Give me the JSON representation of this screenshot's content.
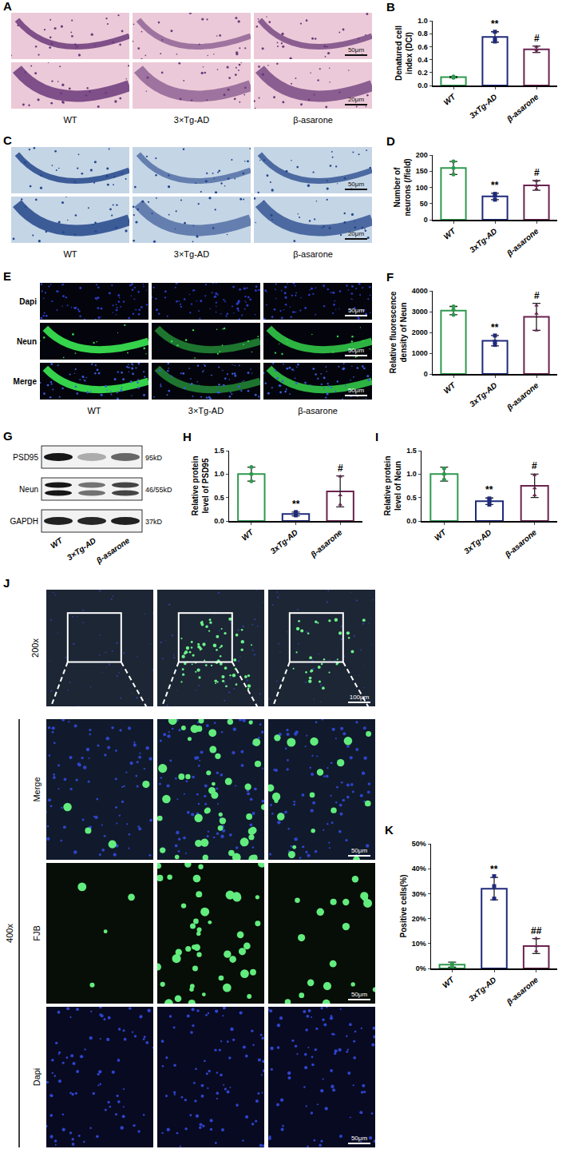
{
  "panels": {
    "A": {
      "label": "A",
      "groups": [
        "WT",
        "3×Tg-AD",
        "β-asarone"
      ],
      "scale_bars": [
        "50μm",
        "20μm"
      ]
    },
    "C": {
      "label": "C",
      "groups": [
        "WT",
        "3×Tg-AD",
        "β-asarone"
      ],
      "scale_bars": [
        "50μm",
        "20μm"
      ]
    },
    "E": {
      "label": "E",
      "groups": [
        "WT",
        "3×Tg-AD",
        "β-asarone"
      ],
      "rows": [
        "Dapi",
        "Neun",
        "Merge"
      ],
      "scale_bar": "50μm"
    },
    "G": {
      "label": "G",
      "groups": [
        "WT",
        "3×Tg-AD",
        "β-asarone"
      ],
      "blots": [
        {
          "protein": "PSD95",
          "size": "95kD"
        },
        {
          "protein": "Neun",
          "size": "46/55kD"
        },
        {
          "protein": "GAPDH",
          "size": "37kD"
        }
      ]
    },
    "J": {
      "label": "J",
      "magnifications": [
        "200x",
        "400x"
      ],
      "rows": [
        "Merge",
        "FJB",
        "Dapi"
      ],
      "scale_bars": [
        "100μm",
        "50μm"
      ]
    }
  },
  "chart_data": [
    {
      "label": "B",
      "type": "bar",
      "y_label": "Denatured cell index (DCI)",
      "categories": [
        "WT",
        "3xTg-AD",
        "β-asarone"
      ],
      "values": [
        0.13,
        0.75,
        0.56
      ],
      "errors": [
        0.01,
        0.08,
        0.05
      ],
      "points": [
        [
          0.12,
          0.13,
          0.14
        ],
        [
          0.68,
          0.72,
          0.83
        ],
        [
          0.52,
          0.55,
          0.6
        ]
      ],
      "colors": [
        "#2e9a4e",
        "#1f2a7c",
        "#6a2350"
      ],
      "ylim": [
        0,
        1.0
      ],
      "yticks": [
        {
          "value": 0,
          "label": "0.0"
        },
        0.2,
        0.4,
        0.6,
        0.8,
        {
          "value": 1,
          "label": "1.0"
        }
      ],
      "grid": false,
      "annotations": [
        {
          "category": "3xTg-AD",
          "text": "**"
        },
        {
          "category": "β-asarone",
          "text": "#"
        }
      ]
    },
    {
      "label": "D",
      "type": "bar",
      "y_label": "Number of neurons (/field)",
      "categories": [
        "WT",
        "3xTg-AD",
        "β-asarone"
      ],
      "values": [
        160,
        72,
        106
      ],
      "errors": [
        20,
        10,
        15
      ],
      "points": [
        [
          140,
          160,
          180
        ],
        [
          62,
          75,
          80
        ],
        [
          95,
          105,
          120
        ]
      ],
      "colors": [
        "#2e9a4e",
        "#1f2a7c",
        "#6a2350"
      ],
      "ylim": [
        0,
        200
      ],
      "yticks": [
        0,
        50,
        100,
        150,
        200
      ],
      "grid": false,
      "annotations": [
        {
          "category": "3xTg-AD",
          "text": "**"
        },
        {
          "category": "β-asarone",
          "text": "#"
        }
      ]
    },
    {
      "label": "F",
      "type": "bar",
      "y_label": "Relative fluorescence density of Neun",
      "categories": [
        "WT",
        "3xTg-AD",
        "β-asarone"
      ],
      "values": [
        3050,
        1600,
        2750
      ],
      "errors": [
        200,
        250,
        650
      ],
      "points": [
        [
          2850,
          3100,
          3250
        ],
        [
          1400,
          1550,
          1850
        ],
        [
          2100,
          2900,
          3300
        ]
      ],
      "colors": [
        "#2e9a4e",
        "#1f2a7c",
        "#6a2350"
      ],
      "ylim": [
        0,
        4000
      ],
      "yticks": [
        0,
        1000,
        2000,
        3000,
        4000
      ],
      "grid": false,
      "annotations": [
        {
          "category": "3xTg-AD",
          "text": "**"
        },
        {
          "category": "β-asarone",
          "text": "#"
        }
      ]
    },
    {
      "label": "H",
      "type": "bar",
      "y_label": "Relative protein level of PSD95",
      "categories": [
        "WT",
        "3xTg-AD",
        "β-asarone"
      ],
      "values": [
        1.0,
        0.15,
        0.63
      ],
      "errors": [
        0.15,
        0.04,
        0.33
      ],
      "points": [
        [
          0.85,
          1.0,
          1.15
        ],
        [
          0.12,
          0.15,
          0.19
        ],
        [
          0.35,
          0.55,
          0.95
        ]
      ],
      "colors": [
        "#2e9a4e",
        "#1f2a7c",
        "#6a2350"
      ],
      "ylim": [
        0,
        1.5
      ],
      "yticks": [
        {
          "value": 0,
          "label": "0.0"
        },
        0.5,
        {
          "value": 1,
          "label": "1.0"
        },
        1.5
      ],
      "grid": false,
      "annotations": [
        {
          "category": "3xTg-AD",
          "text": "**"
        },
        {
          "category": "β-asarone",
          "text": "#"
        }
      ]
    },
    {
      "label": "I",
      "type": "bar",
      "y_label": "Relative protein level of Neun",
      "categories": [
        "WT",
        "3xTg-AD",
        "β-asarone"
      ],
      "values": [
        1.0,
        0.42,
        0.75
      ],
      "errors": [
        0.15,
        0.07,
        0.25
      ],
      "points": [
        [
          0.88,
          1.0,
          1.12
        ],
        [
          0.35,
          0.43,
          0.48
        ],
        [
          0.55,
          0.7,
          0.98
        ]
      ],
      "colors": [
        "#2e9a4e",
        "#1f2a7c",
        "#6a2350"
      ],
      "ylim": [
        0,
        1.5
      ],
      "yticks": [
        {
          "value": 0,
          "label": "0.0"
        },
        0.5,
        {
          "value": 1,
          "label": "1.0"
        },
        1.5
      ],
      "grid": false,
      "annotations": [
        {
          "category": "3xTg-AD",
          "text": "**"
        },
        {
          "category": "β-asarone",
          "text": "#"
        }
      ]
    },
    {
      "label": "K",
      "type": "bar",
      "y_label": "Positive cells(%)",
      "categories": [
        "WT",
        "3xTg-AD",
        "β-asarone"
      ],
      "values": [
        1.5,
        32,
        9
      ],
      "errors": [
        1,
        4.5,
        3
      ],
      "points": [
        [
          0.5,
          1.5,
          2.0
        ],
        [
          28,
          33,
          37
        ],
        [
          7,
          9,
          12
        ]
      ],
      "colors": [
        "#2e9a4e",
        "#1f2a7c",
        "#6a2350"
      ],
      "ylim": [
        0,
        50
      ],
      "yticks": [
        {
          "value": 0,
          "label": "0%"
        },
        {
          "value": 10,
          "label": "10%"
        },
        {
          "value": 20,
          "label": "20%"
        },
        {
          "value": 30,
          "label": "30%"
        },
        {
          "value": 40,
          "label": "40%"
        },
        {
          "value": 50,
          "label": "50%"
        }
      ],
      "grid": false,
      "annotations": [
        {
          "category": "3xTg-AD",
          "text": "**"
        },
        {
          "category": "β-asarone",
          "text": "##"
        }
      ]
    }
  ]
}
